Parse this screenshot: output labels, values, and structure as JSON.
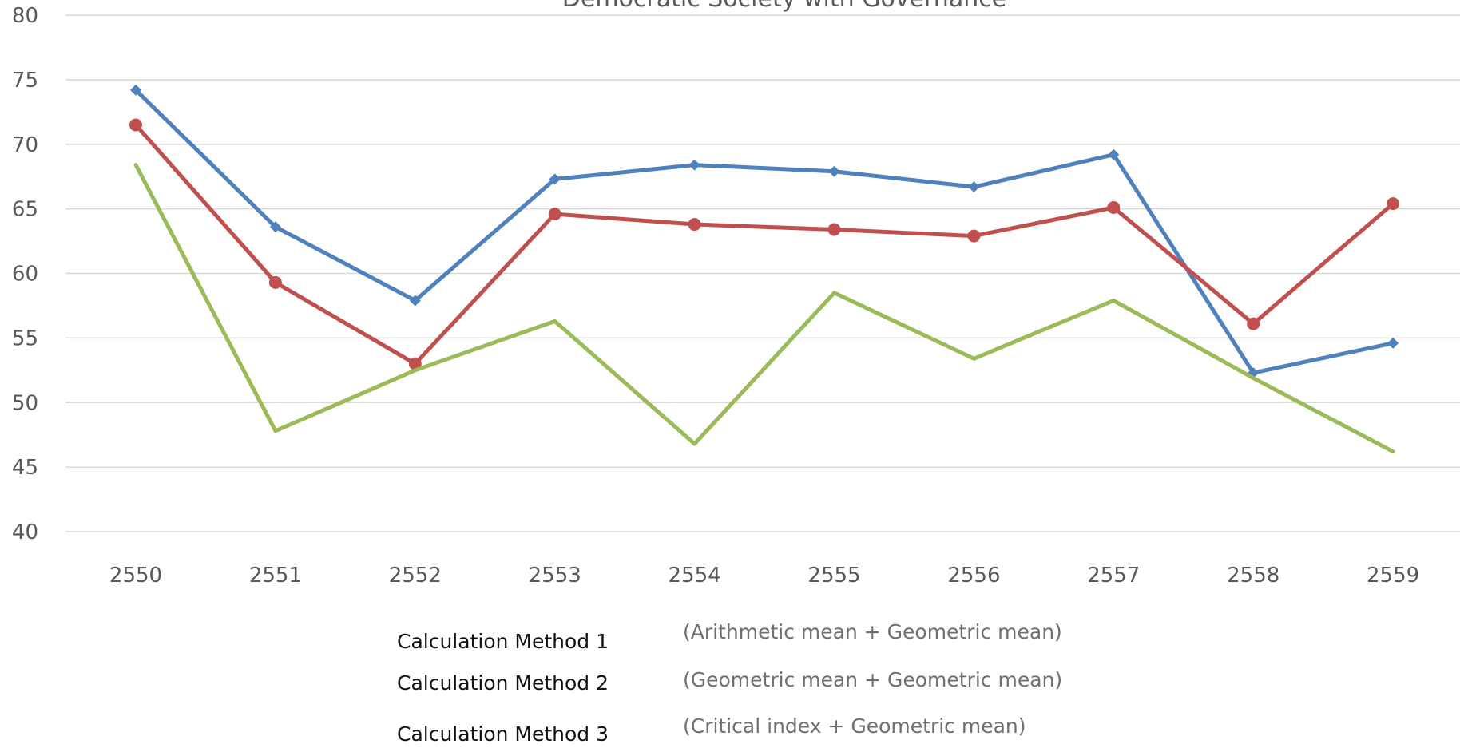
{
  "chart_data": {
    "type": "line",
    "title": "Democratic Society with Governance",
    "xlabel": "",
    "ylabel": "",
    "x": [
      "2550",
      "2551",
      "2552",
      "2553",
      "2554",
      "2555",
      "2556",
      "2557",
      "2558",
      "2559"
    ],
    "ylim": [
      40,
      80
    ],
    "yticks": [
      40,
      45,
      50,
      55,
      60,
      65,
      70,
      75,
      80
    ],
    "grid": true,
    "series": [
      {
        "name": "Calculation Method 1",
        "description": "(Arithmetic mean + Geometric mean)",
        "color": "#4f81bd",
        "marker": "diamond",
        "values": [
          74.2,
          63.6,
          57.9,
          67.3,
          68.4,
          67.9,
          66.7,
          69.2,
          52.3,
          54.6
        ]
      },
      {
        "name": "Calculation Method 2",
        "description": "(Geometric mean + Geometric mean)",
        "color": "#c0504d",
        "marker": "circle",
        "values": [
          71.5,
          59.3,
          53.0,
          64.6,
          63.8,
          63.4,
          62.9,
          65.1,
          56.1,
          65.4
        ]
      },
      {
        "name": "Calculation Method 3",
        "description": "(Critical index + Geometric mean)",
        "color": "#9bbb59",
        "marker": "none",
        "values": [
          68.4,
          47.8,
          52.5,
          56.3,
          46.8,
          58.5,
          53.4,
          57.9,
          51.9,
          46.2
        ]
      }
    ]
  }
}
